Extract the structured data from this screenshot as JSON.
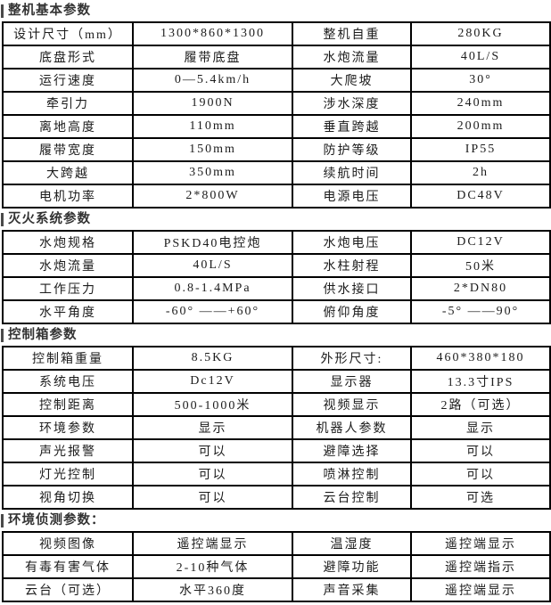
{
  "colors": {
    "background": "#ffffff",
    "border": "#000000",
    "section_title": "#333333",
    "marker_bar": "#4a4a4a",
    "cell_text": "#1c1c1c"
  },
  "sections": [
    {
      "title": "整机基本参数",
      "rows": [
        [
          "设计尺寸（mm）",
          "1300*860*1300",
          "整机自重",
          "280KG"
        ],
        [
          "底盘形式",
          "履带底盘",
          "水炮流量",
          "40L/S"
        ],
        [
          "运行速度",
          "0—5.4km/h",
          "大爬坡",
          "30°"
        ],
        [
          "牵引力",
          "1900N",
          "涉水深度",
          "240mm"
        ],
        [
          "离地高度",
          "110mm",
          "垂直跨越",
          "200mm"
        ],
        [
          "履带宽度",
          "150mm",
          "防护等级",
          "IP55"
        ],
        [
          "大跨越",
          "350mm",
          "续航时间",
          "2h"
        ],
        [
          "电机功率",
          "2*800W",
          "电源电压",
          "DC48V"
        ]
      ]
    },
    {
      "title": "灭火系统参数",
      "rows": [
        [
          "水炮规格",
          "PSKD40电控炮",
          "水炮电压",
          "DC12V"
        ],
        [
          "水炮流量",
          "40L/S",
          "水柱射程",
          "50米"
        ],
        [
          "工作压力",
          "0.8-1.4MPa",
          "供水接口",
          "2*DN80"
        ],
        [
          "水平角度",
          "-60° ——+60°",
          "俯仰角度",
          "-5° ——90°"
        ]
      ]
    },
    {
      "title": "控制箱参数",
      "rows": [
        [
          "控制箱重量",
          "8.5KG",
          "外形尺寸:",
          "460*380*180"
        ],
        [
          "系统电压",
          "Dc12V",
          "显示器",
          "13.3寸IPS"
        ],
        [
          "控制距离",
          "500-1000米",
          "视频显示",
          "2路（可选）"
        ],
        [
          "环境参数",
          "显示",
          "机器人参数",
          "显示"
        ],
        [
          "声光报警",
          "可以",
          "避障选择",
          "可以"
        ],
        [
          "灯光控制",
          "可以",
          "喷淋控制",
          "可以"
        ],
        [
          "视角切换",
          "可以",
          "云台控制",
          "可选"
        ]
      ]
    },
    {
      "title": "环境侦测参数：",
      "rows": [
        [
          "视频图像",
          "遥控端显示",
          "温湿度",
          "遥控端显示"
        ],
        [
          "有毒有害气体",
          "2-10种气体",
          "避障功能",
          "遥控端指示"
        ],
        [
          "云台（可选）",
          "水平360度",
          "声音采集",
          "遥控端显示"
        ]
      ]
    }
  ]
}
